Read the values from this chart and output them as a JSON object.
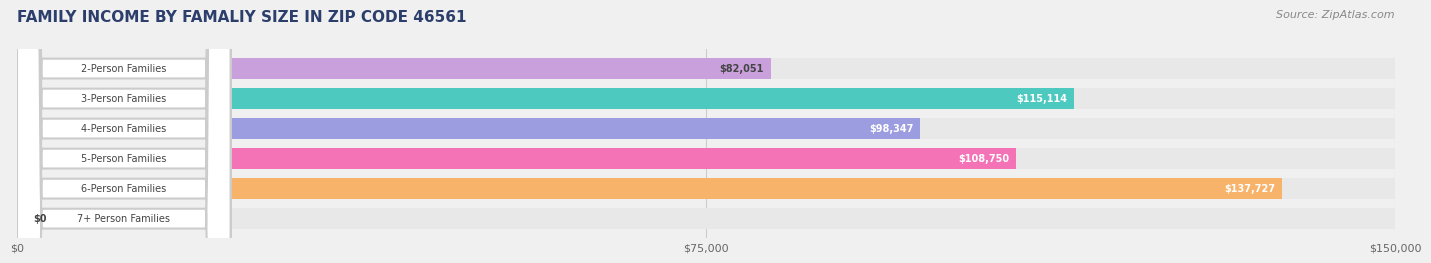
{
  "title": "FAMILY INCOME BY FAMALIY SIZE IN ZIP CODE 46561",
  "source": "Source: ZipAtlas.com",
  "categories": [
    "2-Person Families",
    "3-Person Families",
    "4-Person Families",
    "5-Person Families",
    "6-Person Families",
    "7+ Person Families"
  ],
  "values": [
    82051,
    115114,
    98347,
    108750,
    137727,
    0
  ],
  "bar_colors": [
    "#c9a0dc",
    "#4ec9c0",
    "#9b9de0",
    "#f472b6",
    "#f8b36b",
    "#f4a0b0"
  ],
  "label_colors": [
    "#555555",
    "#ffffff",
    "#ffffff",
    "#ffffff",
    "#ffffff",
    "#555555"
  ],
  "value_labels": [
    "$82,051",
    "$115,114",
    "$98,347",
    "$108,750",
    "$137,727",
    "$0"
  ],
  "x_max": 150000,
  "x_ticks": [
    0,
    75000,
    150000
  ],
  "x_tick_labels": [
    "$0",
    "$75,000",
    "$150,000"
  ],
  "background_color": "#f0f0f0",
  "bar_bg_color": "#e8e8e8",
  "title_color": "#2c3e6b",
  "source_color": "#888888",
  "label_text_color": "#444444"
}
